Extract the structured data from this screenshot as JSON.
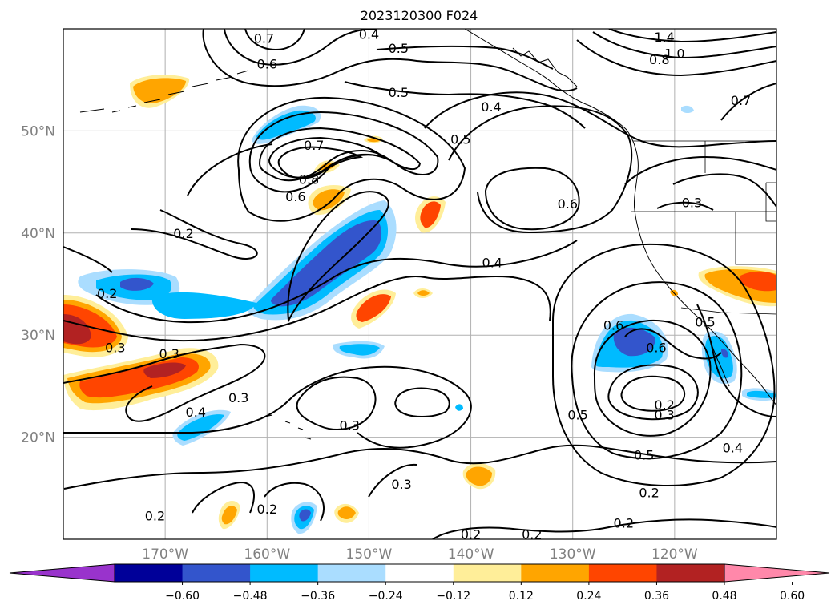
{
  "title": "2023120300 F024",
  "map": {
    "lat_labels": [
      {
        "lat": 50,
        "text": "50°N"
      },
      {
        "lat": 40,
        "text": "40°N"
      },
      {
        "lat": 30,
        "text": "30°N"
      },
      {
        "lat": 20,
        "text": "20°N"
      }
    ],
    "lon_labels": [
      {
        "lon": -170,
        "text": "170°W"
      },
      {
        "lon": -160,
        "text": "160°W"
      },
      {
        "lon": -150,
        "text": "150°W"
      },
      {
        "lon": -140,
        "text": "140°W"
      },
      {
        "lon": -130,
        "text": "130°W"
      },
      {
        "lon": -120,
        "text": "120°W"
      }
    ],
    "contour_labels": [
      {
        "text": "0.2",
        "lon": -168.2,
        "lat": 40.0
      },
      {
        "text": "0.7",
        "lon": -155.4,
        "lat": 48.6
      },
      {
        "text": "0.8",
        "lon": -155.9,
        "lat": 45.3
      },
      {
        "text": "0.6",
        "lon": -157.2,
        "lat": 43.6
      },
      {
        "text": "0.7",
        "lon": -160.3,
        "lat": 59.1
      },
      {
        "text": "0.6",
        "lon": -160.0,
        "lat": 56.6
      },
      {
        "text": "0.4",
        "lon": -150.0,
        "lat": 59.5
      },
      {
        "text": "0.5",
        "lon": -147.1,
        "lat": 58.1
      },
      {
        "text": "0.5",
        "lon": -147.1,
        "lat": 53.8
      },
      {
        "text": "0.4",
        "lon": -138.0,
        "lat": 52.4
      },
      {
        "text": "0.5",
        "lon": -141.0,
        "lat": 49.2
      },
      {
        "text": "0.6",
        "lon": -130.5,
        "lat": 42.9
      },
      {
        "text": "0.4",
        "lon": -137.9,
        "lat": 37.1
      },
      {
        "text": "0.2",
        "lon": -175.7,
        "lat": 34.1
      },
      {
        "text": "0.3",
        "lon": -174.9,
        "lat": 28.8
      },
      {
        "text": "0.3",
        "lon": -169.6,
        "lat": 28.2
      },
      {
        "text": "0.4",
        "lon": -167.0,
        "lat": 22.5
      },
      {
        "text": "0.3",
        "lon": -162.8,
        "lat": 23.9
      },
      {
        "text": "0.3",
        "lon": -151.9,
        "lat": 21.2
      },
      {
        "text": "0.3",
        "lon": -146.8,
        "lat": 15.4
      },
      {
        "text": "0.2",
        "lon": -171.0,
        "lat": 12.3
      },
      {
        "text": "0.2",
        "lon": -160.0,
        "lat": 13.0
      },
      {
        "text": "0.2",
        "lon": -140.0,
        "lat": 10.5
      },
      {
        "text": "0.2",
        "lon": -134.0,
        "lat": 10.5
      },
      {
        "text": "0.2",
        "lon": -125.0,
        "lat": 11.6
      },
      {
        "text": "0.2",
        "lon": -122.5,
        "lat": 14.6
      },
      {
        "text": "0.5",
        "lon": -123.0,
        "lat": 18.3
      },
      {
        "text": "0.4",
        "lon": -114.3,
        "lat": 19.0
      },
      {
        "text": "0.5",
        "lon": -129.5,
        "lat": 22.2
      },
      {
        "text": "0.2",
        "lon": -121.0,
        "lat": 23.2
      },
      {
        "text": "0.3",
        "lon": -121.0,
        "lat": 22.2
      },
      {
        "text": "0.6",
        "lon": -121.8,
        "lat": 28.8
      },
      {
        "text": "0.6",
        "lon": -126.0,
        "lat": 31.0
      },
      {
        "text": "0.5",
        "lon": -117.0,
        "lat": 31.3
      },
      {
        "text": "0.3",
        "lon": -118.3,
        "lat": 43.0
      },
      {
        "text": "0.7",
        "lon": -113.5,
        "lat": 53.0
      },
      {
        "text": "1.4",
        "lon": -121.0,
        "lat": 59.2
      },
      {
        "text": "1.0",
        "lon": -120.0,
        "lat": 57.6
      },
      {
        "text": "0.8",
        "lon": -121.5,
        "lat": 57.0
      }
    ]
  },
  "colorbar": {
    "ticks": [
      "−0.60",
      "−0.48",
      "−0.36",
      "−0.24",
      "−0.12",
      "0.12",
      "0.24",
      "0.36",
      "0.48",
      "0.60"
    ],
    "colors": [
      "#9933cc",
      "#000099",
      "#3355cc",
      "#00bbff",
      "#aaddff",
      "#ffffff",
      "#ffee99",
      "#ffa500",
      "#ff4500",
      "#b22222",
      "#ff88aa"
    ]
  }
}
